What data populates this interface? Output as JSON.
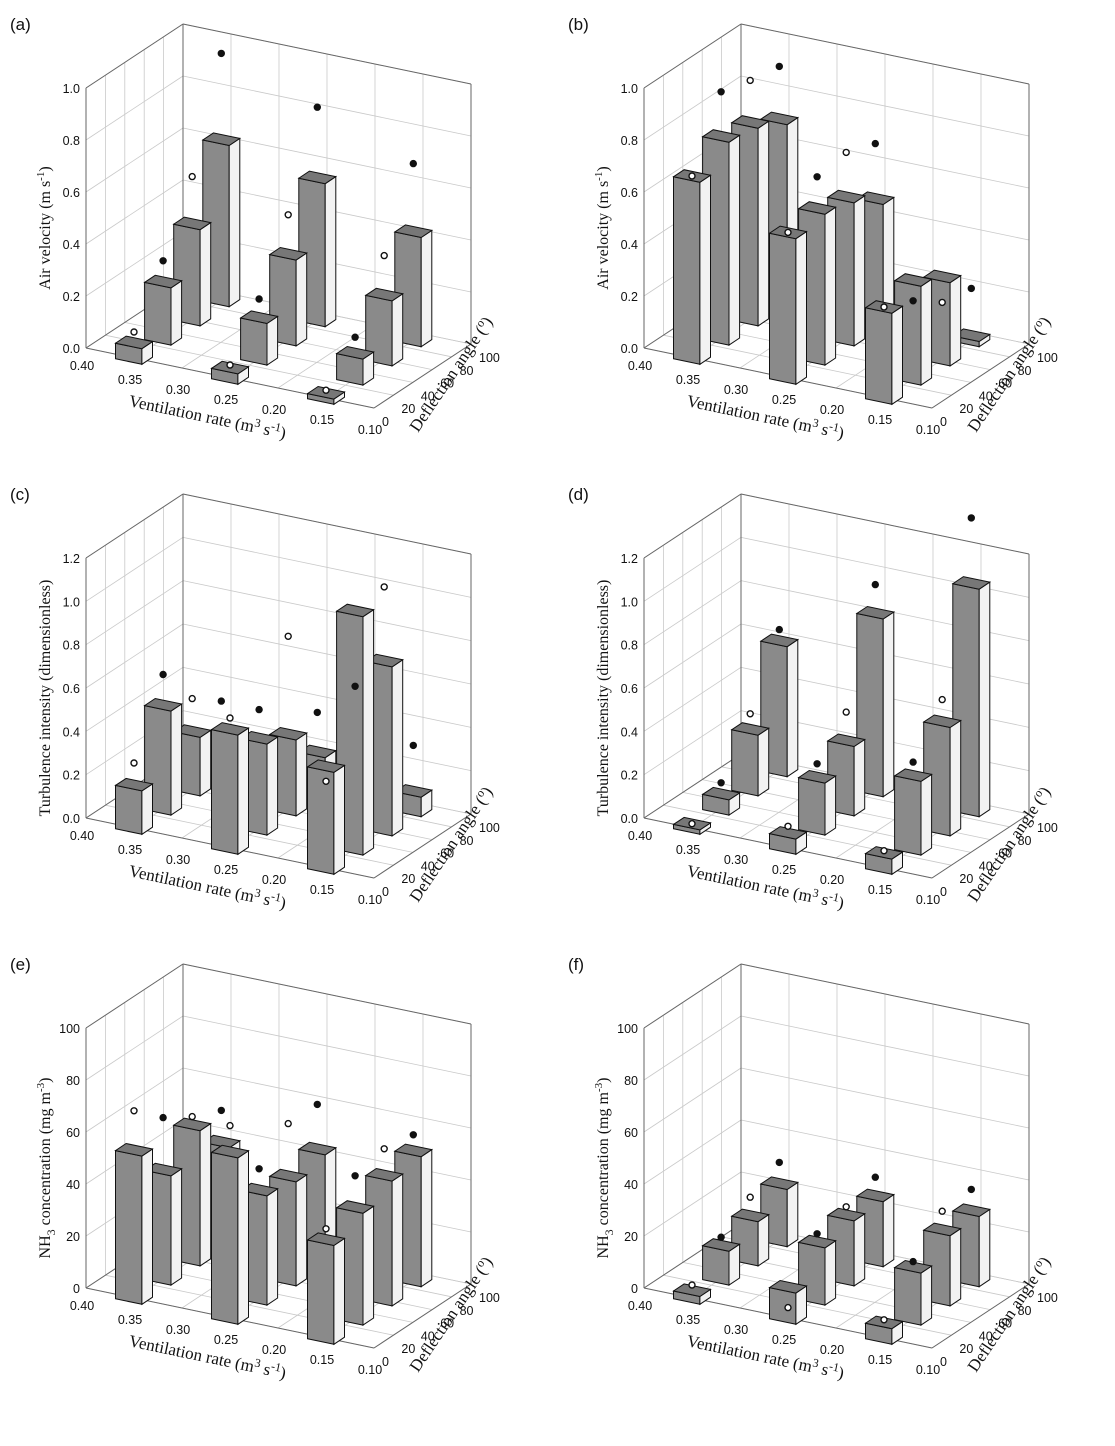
{
  "figure": {
    "panels_order": [
      "(a)",
      "(b)",
      "(c)",
      "(d)",
      "(e)",
      "(f)"
    ]
  },
  "axes_text": {
    "x_label": "Ventilation rate (m",
    "x_label_sup": "3",
    "x_label_mid": " s",
    "x_label_sup2": "-1",
    "x_label_end": ")",
    "y_label": "Deflection angle (",
    "y_label_sup": "o",
    "y_label_end": ")",
    "x_ticks": [
      "0.40",
      "0.35",
      "0.30",
      "0.25",
      "0.20",
      "0.15",
      "0.10"
    ],
    "y_ticks": [
      "0",
      "20",
      "40",
      "60",
      "80",
      "100"
    ]
  },
  "colors": {
    "bar_front": "#8a8a8a",
    "bar_side": "#f2f2f2",
    "bar_top": "#777777",
    "bar_edge": "#111111",
    "marker_filled": "#111111",
    "marker_open": "#ffffff"
  },
  "chart_data": [
    {
      "type": "bar",
      "panel": "(a)",
      "z_label": "Air velocity (m s",
      "z_label_sup": "-1",
      "z_label_end": ")",
      "z_ticks": [
        "0.0",
        "0.2",
        "0.4",
        "0.6",
        "0.8",
        "1.0"
      ],
      "zlim": [
        0,
        1.0
      ],
      "rates": [
        0.35,
        0.25,
        0.15
      ],
      "angles": [
        0,
        30,
        60,
        90
      ],
      "values": [
        [
          0.06,
          0.22,
          0.37,
          0.62
        ],
        [
          0.04,
          0.16,
          0.33,
          0.55
        ],
        [
          0.02,
          0.1,
          0.25,
          0.42
        ]
      ],
      "measured": [
        [
          0.1,
          0.3,
          0.55,
          0.95
        ],
        [
          0.05,
          0.23,
          0.48,
          0.82
        ],
        [
          0.03,
          0.16,
          0.4,
          0.68
        ]
      ]
    },
    {
      "type": "bar",
      "panel": "(b)",
      "z_label": "Air velocity (m s",
      "z_label_sup": "-1",
      "z_label_end": ")",
      "z_ticks": [
        "0.0",
        "0.2",
        "0.4",
        "0.6",
        "0.8",
        "1.0"
      ],
      "zlim": [
        0,
        1.0
      ],
      "rates": [
        0.35,
        0.25,
        0.15
      ],
      "angles": [
        0,
        30,
        60,
        90
      ],
      "values": [
        [
          0.7,
          0.78,
          0.76,
          0.7
        ],
        [
          0.56,
          0.58,
          0.55,
          0.47
        ],
        [
          0.35,
          0.38,
          0.32,
          0.02
        ]
      ],
      "measured": [
        [
          0.7,
          0.95,
          0.92,
          0.9
        ],
        [
          0.56,
          0.7,
          0.72,
          0.68
        ],
        [
          0.35,
          0.3,
          0.22,
          0.2
        ]
      ]
    },
    {
      "type": "bar",
      "panel": "(c)",
      "z_label": "Turbulence intensity (dimensionless)",
      "z_label_sup": "",
      "z_label_end": "",
      "z_ticks": [
        "0.0",
        "0.2",
        "0.4",
        "0.6",
        "0.8",
        "1.0",
        "1.2"
      ],
      "zlim": [
        0,
        1.2
      ],
      "rates": [
        0.35,
        0.25,
        0.15
      ],
      "angles": [
        0,
        30,
        60,
        90
      ],
      "values": [
        [
          0.2,
          0.48,
          0.27,
          0.12
        ],
        [
          0.55,
          0.42,
          0.35,
          0.18
        ],
        [
          0.47,
          1.1,
          0.78,
          0.09
        ]
      ],
      "measured": [
        [
          0.3,
          0.62,
          0.42,
          0.32
        ],
        [
          0.6,
          0.55,
          0.8,
          0.36
        ],
        [
          0.4,
          0.75,
          1.12,
          0.3
        ]
      ]
    },
    {
      "type": "bar",
      "panel": "(d)",
      "z_label": "Turbulence intensity (dimensionless)",
      "z_label_sup": "",
      "z_label_end": "",
      "z_ticks": [
        "0.0",
        "0.2",
        "0.4",
        "0.6",
        "0.8",
        "1.0",
        "1.2"
      ],
      "zlim": [
        0,
        1.2
      ],
      "rates": [
        0.35,
        0.25,
        0.15
      ],
      "angles": [
        0,
        30,
        60,
        90
      ],
      "values": [
        [
          0.02,
          0.07,
          0.28,
          0.6
        ],
        [
          0.07,
          0.24,
          0.32,
          0.82
        ],
        [
          0.07,
          0.34,
          0.5,
          1.05
        ]
      ],
      "measured": [
        [
          0.02,
          0.12,
          0.35,
          0.65
        ],
        [
          0.1,
          0.3,
          0.45,
          0.95
        ],
        [
          0.08,
          0.4,
          0.6,
          1.35
        ]
      ]
    },
    {
      "type": "bar",
      "panel": "(e)",
      "z_label": "NH",
      "z_label_sub": "3",
      "z_label_rest": " concentration (mg m",
      "z_label_sup": "-3",
      "z_label_end": ")",
      "z_ticks": [
        "0",
        "20",
        "40",
        "60",
        "80",
        "100"
      ],
      "zlim": [
        0,
        100
      ],
      "rates": [
        0.35,
        0.25,
        0.15
      ],
      "angles": [
        0,
        30,
        60,
        90
      ],
      "values": [
        [
          57,
          42,
          52,
          38
        ],
        [
          64,
          42,
          40,
          43
        ],
        [
          38,
          43,
          48,
          50
        ]
      ],
      "measured": [
        [
          72,
          62,
          55,
          50
        ],
        [
          74,
          50,
          60,
          60
        ],
        [
          42,
          55,
          58,
          56
        ]
      ]
    },
    {
      "type": "bar",
      "panel": "(f)",
      "z_label": "NH",
      "z_label_sub": "3",
      "z_label_rest": " concentration (mg m",
      "z_label_sup": "-3",
      "z_label_end": ")",
      "z_ticks": [
        "0",
        "20",
        "40",
        "60",
        "80",
        "100"
      ],
      "zlim": [
        0,
        100
      ],
      "rates": [
        0.35,
        0.25,
        0.15
      ],
      "angles": [
        0,
        30,
        60,
        90
      ],
      "values": [
        [
          3,
          13,
          17,
          22
        ],
        [
          12,
          22,
          25,
          25
        ],
        [
          6,
          20,
          27,
          27
        ]
      ],
      "measured": [
        [
          5,
          16,
          24,
          30
        ],
        [
          4,
          25,
          28,
          32
        ],
        [
          7,
          22,
          34,
          35
        ]
      ]
    }
  ]
}
